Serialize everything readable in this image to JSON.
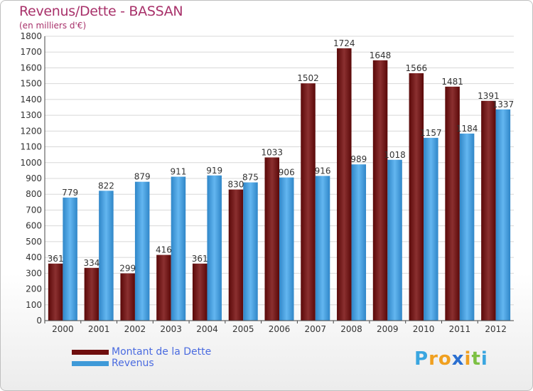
{
  "header": {
    "title": "Revenus/Dette - BASSAN",
    "subtitle": "(en milliers d'€)"
  },
  "legend": {
    "debt_label": "Montant de la Dette",
    "revenue_label": "Revenus"
  },
  "logo": {
    "letters": [
      "P",
      "r",
      "o",
      "x",
      "i",
      "t",
      "i"
    ],
    "colors": [
      "#3aa6e0",
      "#f0a020",
      "#f0a020",
      "#2a6fd0",
      "#f0a020",
      "#7cc043",
      "#3aa6e0"
    ]
  },
  "colors": {
    "debt": "#6e0d0d",
    "debt_light": "#8b3030",
    "revenue": "#3f9ad8",
    "revenue_light": "#5fb2ee",
    "grid": "#d8d8d8",
    "axis": "#444444"
  },
  "chart_data": {
    "type": "bar",
    "title": "Revenus/Dette - BASSAN",
    "ylabel": "(en milliers d'€)",
    "xlabel": "",
    "categories": [
      "2000",
      "2001",
      "2002",
      "2003",
      "2004",
      "2005",
      "2006",
      "2007",
      "2008",
      "2009",
      "2010",
      "2011",
      "2012"
    ],
    "series": [
      {
        "name": "Montant de la Dette",
        "values": [
          361,
          334,
          299,
          416,
          361,
          830,
          1033,
          1502,
          1724,
          1648,
          1566,
          1481,
          1391
        ]
      },
      {
        "name": "Revenus",
        "values": [
          779,
          822,
          879,
          911,
          919,
          875,
          906,
          916,
          989,
          1018,
          1157,
          1184,
          1337
        ]
      }
    ],
    "ylim": [
      0,
      1800
    ],
    "yticks": [
      0,
      100,
      200,
      300,
      400,
      500,
      600,
      700,
      800,
      900,
      1000,
      1100,
      1200,
      1300,
      1400,
      1500,
      1600,
      1700,
      1800
    ],
    "grid": true,
    "legend_position": "bottom-left"
  }
}
